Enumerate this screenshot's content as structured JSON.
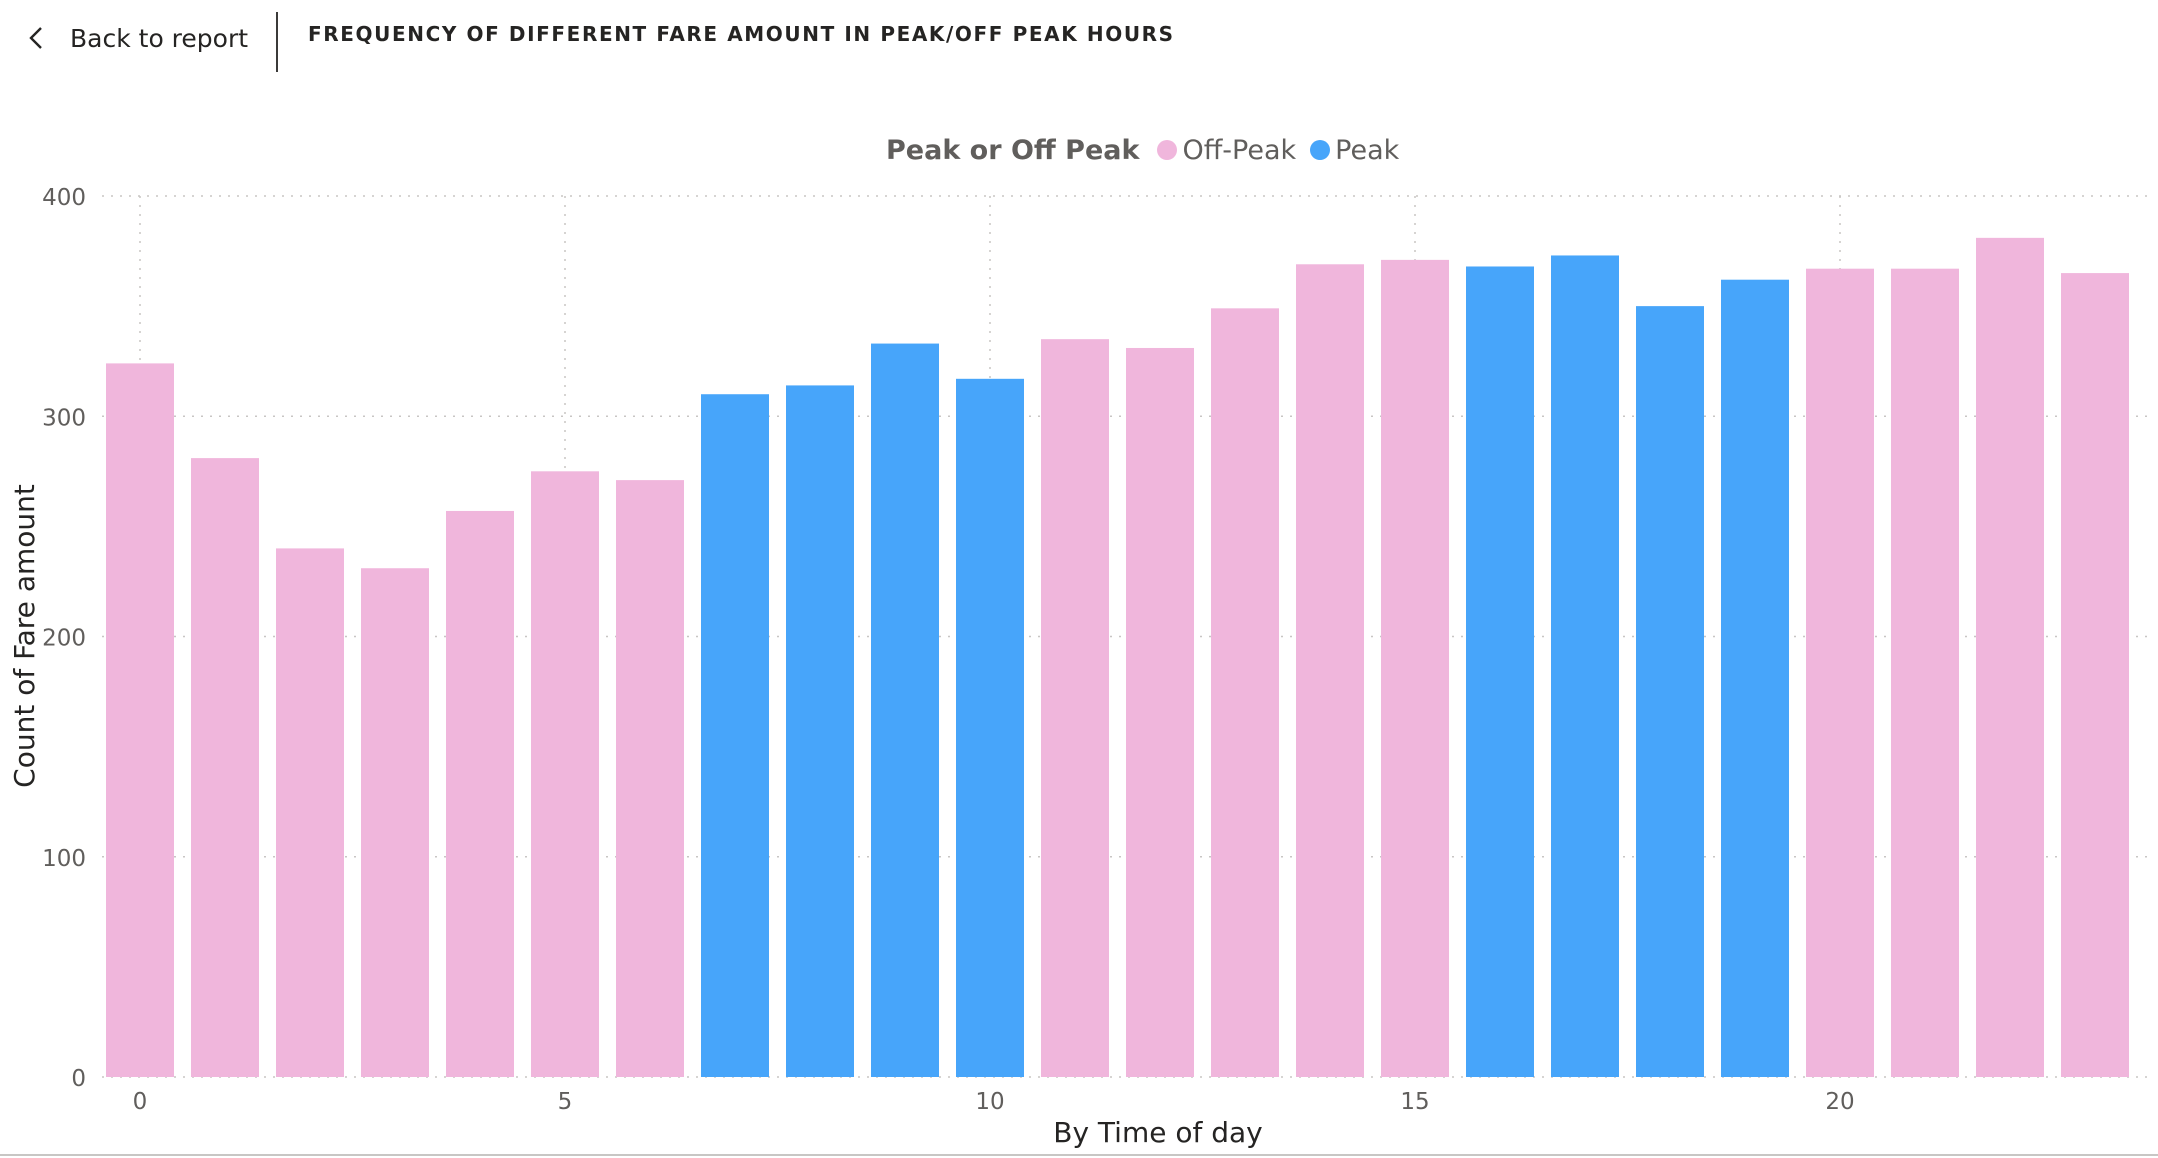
{
  "header": {
    "back_label": "Back to report",
    "title": "FREQUENCY OF DIFFERENT FARE AMOUNT IN PEAK/OFF PEAK HOURS"
  },
  "legend": {
    "title": "Peak or Off Peak",
    "items": [
      {
        "label": "Off-Peak",
        "color": "#F0B6DC"
      },
      {
        "label": "Peak",
        "color": "#47A5FA"
      }
    ]
  },
  "chart_data": {
    "type": "bar",
    "xlabel": "By Time of day",
    "ylabel": "Count of Fare amount",
    "xlim": [
      -0.5,
      23.5
    ],
    "ylim": [
      0,
      400
    ],
    "x_ticks": [
      0,
      5,
      10,
      15,
      20
    ],
    "y_ticks": [
      0,
      100,
      200,
      300,
      400
    ],
    "grid": true,
    "legend_position": "top-center",
    "colors": {
      "Off-Peak": "#F0B6DC",
      "Peak": "#47A5FA"
    },
    "x": [
      0,
      1,
      2,
      3,
      4,
      5,
      6,
      7,
      8,
      9,
      10,
      11,
      12,
      13,
      14,
      15,
      16,
      17,
      18,
      19,
      20,
      21,
      22,
      23
    ],
    "values": [
      324,
      281,
      240,
      231,
      257,
      275,
      271,
      310,
      314,
      333,
      317,
      335,
      331,
      349,
      369,
      371,
      368,
      373,
      350,
      362,
      367,
      367,
      381,
      365
    ],
    "category": [
      "Off-Peak",
      "Off-Peak",
      "Off-Peak",
      "Off-Peak",
      "Off-Peak",
      "Off-Peak",
      "Off-Peak",
      "Peak",
      "Peak",
      "Peak",
      "Peak",
      "Off-Peak",
      "Off-Peak",
      "Off-Peak",
      "Off-Peak",
      "Off-Peak",
      "Peak",
      "Peak",
      "Peak",
      "Peak",
      "Off-Peak",
      "Off-Peak",
      "Off-Peak",
      "Off-Peak"
    ]
  }
}
